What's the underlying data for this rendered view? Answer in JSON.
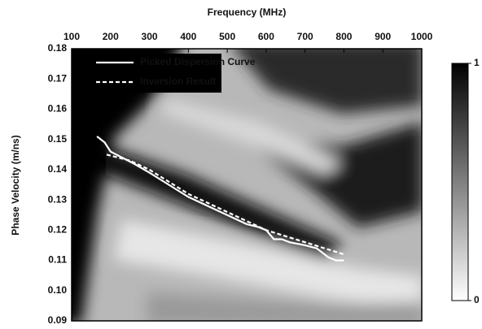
{
  "chart_data": {
    "type": "line",
    "title": "Frequency (MHz)",
    "y_label": "Phase Velocity (m/ns)",
    "xlim": [
      100,
      1000
    ],
    "xticks": [
      100,
      200,
      300,
      400,
      500,
      600,
      700,
      800,
      900,
      1000
    ],
    "ylim": [
      0.09,
      0.18
    ],
    "yticks": [
      0.09,
      {
        "value": 0.1,
        "label": "0.10"
      },
      0.11,
      0.12,
      0.13,
      0.14,
      0.15,
      0.16,
      0.17,
      0.18
    ],
    "legend": "upper left",
    "series": [
      {
        "name": "Picked Dispersion Curve",
        "color": "#ffffff",
        "dash": false,
        "x": [
          165,
          185,
          200,
          230,
          260,
          300,
          350,
          400,
          450,
          500,
          550,
          580,
          600,
          620,
          640,
          660,
          700,
          730,
          740,
          760,
          780,
          800
        ],
        "values": [
          0.151,
          0.149,
          0.146,
          0.144,
          0.142,
          0.139,
          0.135,
          0.131,
          0.128,
          0.125,
          0.122,
          0.121,
          0.12,
          0.117,
          0.117,
          0.116,
          0.115,
          0.114,
          0.113,
          0.111,
          0.11,
          0.11
        ]
      },
      {
        "name": "Inversion Result",
        "color": "#ffffff",
        "dash": true,
        "x": [
          190,
          250,
          300,
          350,
          400,
          450,
          500,
          550,
          600,
          650,
          700,
          750,
          800
        ],
        "values": [
          0.145,
          0.143,
          0.14,
          0.136,
          0.132,
          0.129,
          0.126,
          0.123,
          0.12,
          0.118,
          0.116,
          0.114,
          0.112
        ]
      }
    ],
    "clim": [
      0,
      1
    ],
    "cticks": [
      0,
      1
    ]
  }
}
